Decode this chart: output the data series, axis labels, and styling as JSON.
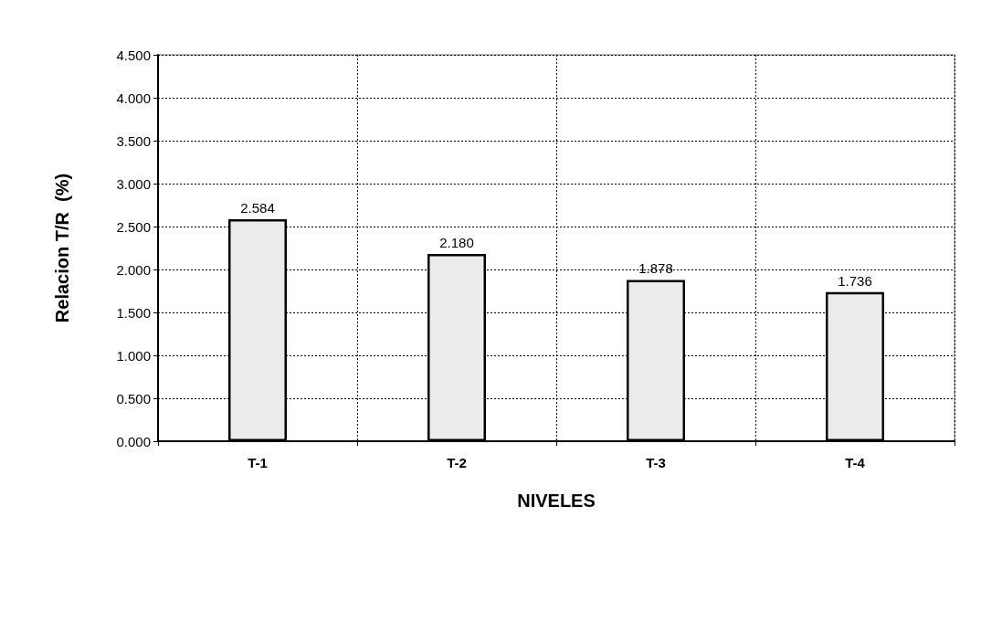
{
  "chart_data": {
    "type": "bar",
    "xlabel": "NIVELES",
    "ylabel": "Relacion T/R  (%)",
    "categories": [
      "T-1",
      "T-2",
      "T-3",
      "T-4"
    ],
    "values": [
      2.584,
      2.18,
      1.878,
      1.736
    ],
    "value_labels": [
      "2.584",
      "2.180",
      "1.878",
      "1.736"
    ],
    "color": "#ececec",
    "ylim": [
      0,
      4.5
    ],
    "yticks": [
      {
        "value": 0,
        "label": "0.000"
      },
      {
        "value": 0.5,
        "label": "0.500"
      },
      {
        "value": 1,
        "label": "1.000"
      },
      {
        "value": 1.5,
        "label": "1.500"
      },
      {
        "value": 2,
        "label": "2.000"
      },
      {
        "value": 2.5,
        "label": "2.500"
      },
      {
        "value": 3,
        "label": "3.000"
      },
      {
        "value": 3.5,
        "label": "3.500"
      },
      {
        "value": 4,
        "label": "4.000"
      },
      {
        "value": 4.5,
        "label": "4.500"
      }
    ],
    "grid": true
  }
}
